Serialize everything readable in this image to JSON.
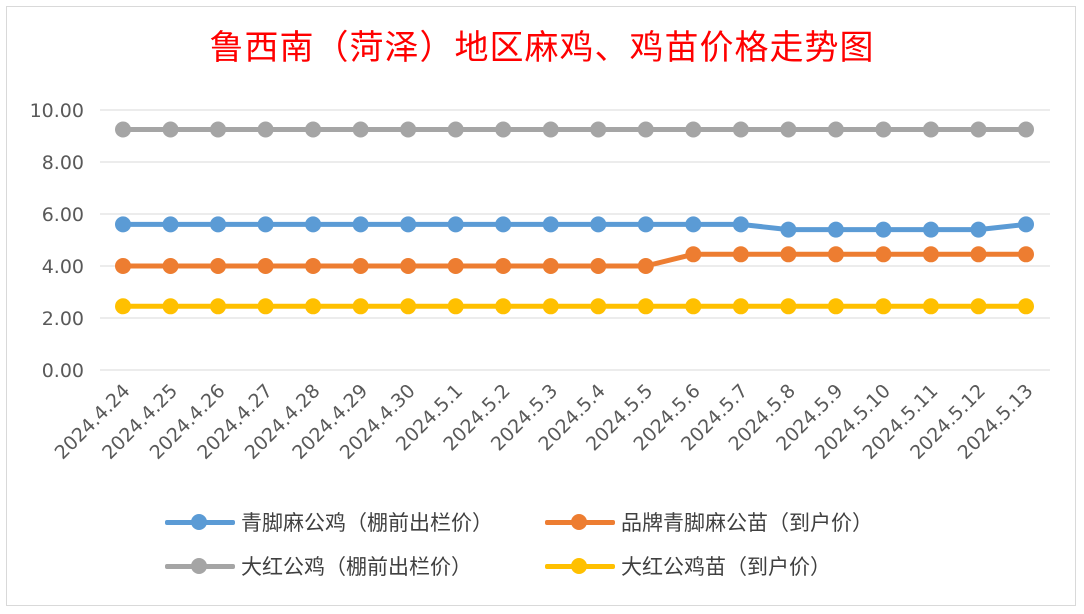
{
  "chart_data": {
    "type": "line",
    "title": "鲁西南（菏泽）地区麻鸡、鸡苗价格走势图",
    "title_color": "#ff0000",
    "xlabel": "",
    "ylabel": "",
    "ylim": [
      0,
      10
    ],
    "yticks": [
      "0.00",
      "2.00",
      "4.00",
      "6.00",
      "8.00",
      "10.00"
    ],
    "grid": true,
    "legend_position": "bottom",
    "categories": [
      "2024.4.24",
      "2024.4.25",
      "2024.4.26",
      "2024.4.27",
      "2024.4.28",
      "2024.4.29",
      "2024.4.30",
      "2024.5.1",
      "2024.5.2",
      "2024.5.3",
      "2024.5.4",
      "2024.5.5",
      "2024.5.6",
      "2024.5.7",
      "2024.5.8",
      "2024.5.9",
      "2024.5.10",
      "2024.5.11",
      "2024.5.12",
      "2024.5.13"
    ],
    "series": [
      {
        "name": "青脚麻公鸡（棚前出栏价）",
        "color": "#5b9bd5",
        "values": [
          5.6,
          5.6,
          5.6,
          5.6,
          5.6,
          5.6,
          5.6,
          5.6,
          5.6,
          5.6,
          5.6,
          5.6,
          5.6,
          5.6,
          5.4,
          5.4,
          5.4,
          5.4,
          5.4,
          5.6
        ]
      },
      {
        "name": "品牌青脚麻公苗（到户价）",
        "color": "#ed7d31",
        "values": [
          4.0,
          4.0,
          4.0,
          4.0,
          4.0,
          4.0,
          4.0,
          4.0,
          4.0,
          4.0,
          4.0,
          4.0,
          4.45,
          4.45,
          4.45,
          4.45,
          4.45,
          4.45,
          4.45,
          4.45
        ]
      },
      {
        "name": "大红公鸡（棚前出栏价）",
        "color": "#a5a5a5",
        "values": [
          9.25,
          9.25,
          9.25,
          9.25,
          9.25,
          9.25,
          9.25,
          9.25,
          9.25,
          9.25,
          9.25,
          9.25,
          9.25,
          9.25,
          9.25,
          9.25,
          9.25,
          9.25,
          9.25,
          9.25
        ]
      },
      {
        "name": "大红公鸡苗（到户价）",
        "color": "#ffc000",
        "values": [
          2.45,
          2.45,
          2.45,
          2.45,
          2.45,
          2.45,
          2.45,
          2.45,
          2.45,
          2.45,
          2.45,
          2.45,
          2.45,
          2.45,
          2.45,
          2.45,
          2.45,
          2.45,
          2.45,
          2.45
        ]
      }
    ]
  }
}
